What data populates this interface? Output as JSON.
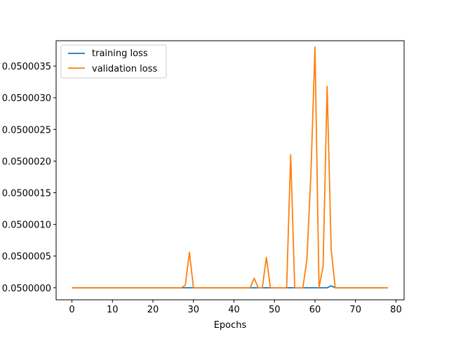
{
  "chart_data": {
    "type": "line",
    "title": "",
    "xlabel": "Epochs",
    "ylabel": "",
    "xlim": [
      -3.9,
      82.0
    ],
    "ylim": [
      0.04999981,
      0.0500039
    ],
    "xticks": [
      0,
      10,
      20,
      30,
      40,
      50,
      60,
      70,
      80
    ],
    "xtick_labels": [
      "0",
      "10",
      "20",
      "30",
      "40",
      "50",
      "60",
      "70",
      "80"
    ],
    "yticks": [
      0.05,
      0.0500005,
      0.050001,
      0.0500015,
      0.050002,
      0.0500025,
      0.050003,
      0.0500035
    ],
    "ytick_labels": [
      "0.0500000",
      "0.0500005",
      "0.0500010",
      "0.0500015",
      "0.0500020",
      "0.0500025",
      "0.0500030",
      "0.0500035"
    ],
    "grid": false,
    "legend_position": "top-left",
    "series": [
      {
        "name": "training loss",
        "color": "#1f77b4",
        "x": [
          0,
          1,
          2,
          3,
          4,
          5,
          6,
          7,
          8,
          9,
          10,
          11,
          12,
          13,
          14,
          15,
          16,
          17,
          18,
          19,
          20,
          21,
          22,
          23,
          24,
          25,
          26,
          27,
          28,
          29,
          30,
          31,
          32,
          33,
          34,
          35,
          36,
          37,
          38,
          39,
          40,
          41,
          42,
          43,
          44,
          45,
          46,
          47,
          48,
          49,
          50,
          51,
          52,
          53,
          54,
          55,
          56,
          57,
          58,
          59,
          60,
          61,
          62,
          63,
          64,
          65,
          66,
          67,
          68,
          69,
          70,
          71,
          72,
          73,
          74,
          75,
          76,
          77,
          78
        ],
        "values": [
          0.05,
          0.05,
          0.05,
          0.05,
          0.05,
          0.05,
          0.05,
          0.05,
          0.05,
          0.05,
          0.05,
          0.05,
          0.05,
          0.05,
          0.05,
          0.05,
          0.05,
          0.05,
          0.05,
          0.05,
          0.05,
          0.05,
          0.05,
          0.05,
          0.05,
          0.05,
          0.05,
          0.05,
          0.05,
          0.05,
          0.05,
          0.05,
          0.05,
          0.05,
          0.05,
          0.05,
          0.05,
          0.05,
          0.05,
          0.05,
          0.05,
          0.05,
          0.05,
          0.05,
          0.05,
          0.05,
          0.05,
          0.05,
          0.05,
          0.05,
          0.05,
          0.05,
          0.05,
          0.05,
          0.05,
          0.05,
          0.05,
          0.05,
          0.05,
          0.05,
          0.05,
          0.05,
          0.05,
          0.05,
          0.05000003,
          0.05,
          0.05,
          0.05,
          0.05,
          0.05,
          0.05,
          0.05,
          0.05,
          0.05,
          0.05,
          0.05,
          0.05,
          0.05,
          0.05
        ]
      },
      {
        "name": "validation loss",
        "color": "#ff7f0e",
        "x": [
          0,
          1,
          2,
          3,
          4,
          5,
          6,
          7,
          8,
          9,
          10,
          11,
          12,
          13,
          14,
          15,
          16,
          17,
          18,
          19,
          20,
          21,
          22,
          23,
          24,
          25,
          26,
          27,
          28,
          29,
          30,
          31,
          32,
          33,
          34,
          35,
          36,
          37,
          38,
          39,
          40,
          41,
          42,
          43,
          44,
          45,
          46,
          47,
          48,
          49,
          50,
          51,
          52,
          53,
          54,
          55,
          56,
          57,
          58,
          59,
          60,
          61,
          62,
          63,
          64,
          65,
          66,
          67,
          68,
          69,
          70,
          71,
          72,
          73,
          74,
          75,
          76,
          77,
          78
        ],
        "values": [
          0.05,
          0.05,
          0.05,
          0.05,
          0.05,
          0.05,
          0.05,
          0.05,
          0.05,
          0.05,
          0.05,
          0.05,
          0.05,
          0.05,
          0.05,
          0.05,
          0.05,
          0.05,
          0.05,
          0.05,
          0.05,
          0.05,
          0.05,
          0.05,
          0.05,
          0.05,
          0.05,
          0.05,
          0.05000004,
          0.05000056,
          0.05,
          0.05,
          0.05,
          0.05,
          0.05,
          0.05,
          0.05,
          0.05,
          0.05,
          0.05,
          0.05,
          0.05,
          0.05,
          0.05,
          0.05,
          0.05000015,
          0.05,
          0.05,
          0.05000048,
          0.05,
          0.05,
          0.05,
          0.05,
          0.05,
          0.0500021,
          0.05,
          0.05,
          0.05,
          0.05000044,
          0.0500018,
          0.0500038,
          0.05,
          0.05000034,
          0.05000318,
          0.0500006,
          0.05,
          0.05,
          0.05,
          0.05,
          0.05,
          0.05,
          0.05,
          0.05,
          0.05,
          0.05,
          0.05,
          0.05,
          0.05,
          0.05
        ]
      }
    ]
  }
}
